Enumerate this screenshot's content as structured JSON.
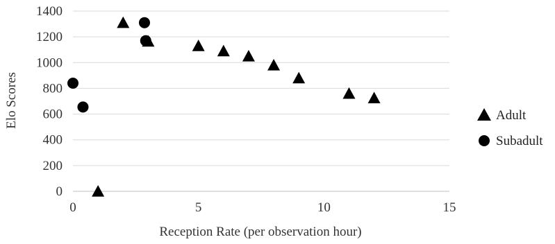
{
  "chart_data": {
    "type": "scatter",
    "xlabel": "Reception Rate (per observation hour)",
    "ylabel": "Elo Scores",
    "xlim": [
      0,
      15
    ],
    "ylim": [
      0,
      1400
    ],
    "x_ticks": [
      "0",
      "5",
      "10",
      "15"
    ],
    "y_ticks": [
      "0",
      "200",
      "400",
      "600",
      "800",
      "1000",
      "1200",
      "1400"
    ],
    "grid": "horizontal",
    "legend_position": "right",
    "series": [
      {
        "name": "Adult",
        "marker": "triangle",
        "color": "#000000",
        "points": [
          {
            "x": 1,
            "y": 0
          },
          {
            "x": 2,
            "y": 1310
          },
          {
            "x": 3,
            "y": 1165
          },
          {
            "x": 5,
            "y": 1130
          },
          {
            "x": 6,
            "y": 1090
          },
          {
            "x": 7,
            "y": 1050
          },
          {
            "x": 8,
            "y": 980
          },
          {
            "x": 9,
            "y": 880
          },
          {
            "x": 11,
            "y": 760
          },
          {
            "x": 12,
            "y": 725
          }
        ]
      },
      {
        "name": "Subadult",
        "marker": "circle",
        "color": "#000000",
        "points": [
          {
            "x": 0,
            "y": 840
          },
          {
            "x": 0.4,
            "y": 655
          },
          {
            "x": 2.85,
            "y": 1310
          },
          {
            "x": 2.9,
            "y": 1170
          }
        ]
      }
    ]
  }
}
